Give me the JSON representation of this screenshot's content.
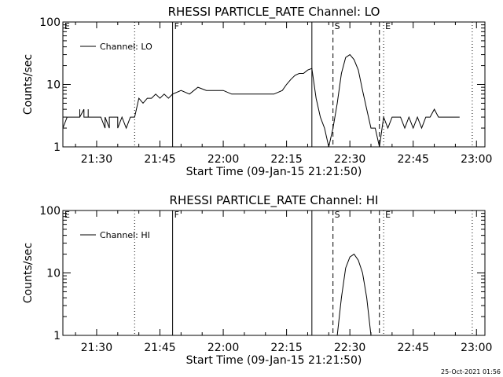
{
  "footer": {
    "timestamp": "25-Oct-2021 01:56"
  },
  "chart_data": [
    {
      "type": "line",
      "title": "RHESSI PARTICLE_RATE Channel: LO",
      "xlabel": "Start Time (09-Jan-15 21:21:50)",
      "ylabel": "Counts/sec",
      "yscale": "log",
      "ylim": [
        1,
        100
      ],
      "yticks": [
        "1",
        "10",
        "100"
      ],
      "xlim_minutes_after_2100": [
        22,
        122
      ],
      "xticks": [
        "21:30",
        "21:45",
        "22:00",
        "22:15",
        "22:30",
        "22:45",
        "23:00"
      ],
      "markers": [
        {
          "label": "E",
          "time": "21:22",
          "style": "none"
        },
        {
          "label": "",
          "time": "21:39",
          "style": "dotted"
        },
        {
          "label": "F",
          "time": "21:48",
          "style": "solid"
        },
        {
          "label": "",
          "time": "22:21",
          "style": "solid"
        },
        {
          "label": "S",
          "time": "22:26",
          "style": "dashed"
        },
        {
          "label": "",
          "time": "22:37",
          "style": "dashed"
        },
        {
          "label": "E",
          "time": "22:38",
          "style": "dotted"
        },
        {
          "label": "",
          "time": "22:59",
          "style": "dotted"
        }
      ],
      "legend": {
        "position": "top-left"
      },
      "series": [
        {
          "name": "Channel: LO",
          "points": [
            [
              "21:22",
              3
            ],
            [
              "21:22",
              2
            ],
            [
              "21:23",
              3
            ],
            [
              "21:26",
              3
            ],
            [
              "21:26",
              4
            ],
            [
              "21:26",
              3
            ],
            [
              "21:27",
              4
            ],
            [
              "21:27",
              3
            ],
            [
              "21:28",
              3
            ],
            [
              "21:28",
              4
            ],
            [
              "21:28",
              3
            ],
            [
              "21:31",
              3
            ],
            [
              "21:32",
              2
            ],
            [
              "21:32",
              3
            ],
            [
              "21:33",
              2
            ],
            [
              "21:33",
              3
            ],
            [
              "21:35",
              3
            ],
            [
              "21:35",
              2
            ],
            [
              "21:36",
              3
            ],
            [
              "21:37",
              2
            ],
            [
              "21:38",
              3
            ],
            [
              "21:39",
              3
            ],
            [
              "21:40",
              6
            ],
            [
              "21:41",
              5
            ],
            [
              "21:42",
              6
            ],
            [
              "21:43",
              6
            ],
            [
              "21:44",
              7
            ],
            [
              "21:45",
              6
            ],
            [
              "21:46",
              7
            ],
            [
              "21:47",
              6
            ],
            [
              "21:48",
              7
            ],
            [
              "21:50",
              8
            ],
            [
              "21:52",
              7
            ],
            [
              "21:54",
              9
            ],
            [
              "21:56",
              8
            ],
            [
              "21:58",
              8
            ],
            [
              "22:00",
              8
            ],
            [
              "22:02",
              7
            ],
            [
              "22:04",
              7
            ],
            [
              "22:06",
              7
            ],
            [
              "22:08",
              7
            ],
            [
              "22:10",
              7
            ],
            [
              "22:12",
              7
            ],
            [
              "22:14",
              8
            ],
            [
              "22:15",
              10
            ],
            [
              "22:16",
              12
            ],
            [
              "22:17",
              14
            ],
            [
              "22:18",
              15
            ],
            [
              "22:19",
              15
            ],
            [
              "22:20",
              17
            ],
            [
              "22:21",
              18
            ],
            [
              "22:22",
              6
            ],
            [
              "22:23",
              3
            ],
            [
              "22:24",
              2
            ],
            [
              "22:25",
              1
            ],
            [
              "22:26",
              2
            ],
            [
              "22:27",
              5
            ],
            [
              "22:28",
              15
            ],
            [
              "22:29",
              27
            ],
            [
              "22:30",
              30
            ],
            [
              "22:31",
              25
            ],
            [
              "22:32",
              17
            ],
            [
              "22:33",
              8
            ],
            [
              "22:34",
              4
            ],
            [
              "22:35",
              2
            ],
            [
              "22:36",
              2
            ],
            [
              "22:37",
              1
            ],
            [
              "22:38",
              3
            ],
            [
              "22:39",
              2
            ],
            [
              "22:40",
              3
            ],
            [
              "22:42",
              3
            ],
            [
              "22:43",
              2
            ],
            [
              "22:44",
              3
            ],
            [
              "22:45",
              2
            ],
            [
              "22:46",
              3
            ],
            [
              "22:47",
              2
            ],
            [
              "22:48",
              3
            ],
            [
              "22:49",
              3
            ],
            [
              "22:50",
              4
            ],
            [
              "22:51",
              3
            ],
            [
              "22:52",
              3
            ],
            [
              "22:56",
              3
            ]
          ]
        }
      ]
    },
    {
      "type": "line",
      "title": "RHESSI PARTICLE_RATE Channel: HI",
      "xlabel": "Start Time (09-Jan-15 21:21:50)",
      "ylabel": "Counts/sec",
      "yscale": "log",
      "ylim": [
        1,
        100
      ],
      "yticks": [
        "1",
        "10",
        "100"
      ],
      "xlim_minutes_after_2100": [
        22,
        122
      ],
      "xticks": [
        "21:30",
        "21:45",
        "22:00",
        "22:15",
        "22:30",
        "22:45",
        "23:00"
      ],
      "markers": [
        {
          "label": "E",
          "time": "21:22",
          "style": "none"
        },
        {
          "label": "",
          "time": "21:39",
          "style": "dotted"
        },
        {
          "label": "F",
          "time": "21:48",
          "style": "solid"
        },
        {
          "label": "",
          "time": "22:21",
          "style": "solid"
        },
        {
          "label": "S",
          "time": "22:26",
          "style": "dashed"
        },
        {
          "label": "",
          "time": "22:37",
          "style": "dashed"
        },
        {
          "label": "E",
          "time": "22:38",
          "style": "dotted"
        },
        {
          "label": "",
          "time": "22:59",
          "style": "dotted"
        }
      ],
      "legend": {
        "position": "top-left"
      },
      "series": [
        {
          "name": "Channel: HI",
          "points": [
            [
              "22:27",
              1
            ],
            [
              "22:28",
              4
            ],
            [
              "22:29",
              12
            ],
            [
              "22:30",
              18
            ],
            [
              "22:31",
              20
            ],
            [
              "22:32",
              16
            ],
            [
              "22:33",
              10
            ],
            [
              "22:34",
              4
            ],
            [
              "22:35",
              1
            ]
          ]
        }
      ]
    }
  ]
}
